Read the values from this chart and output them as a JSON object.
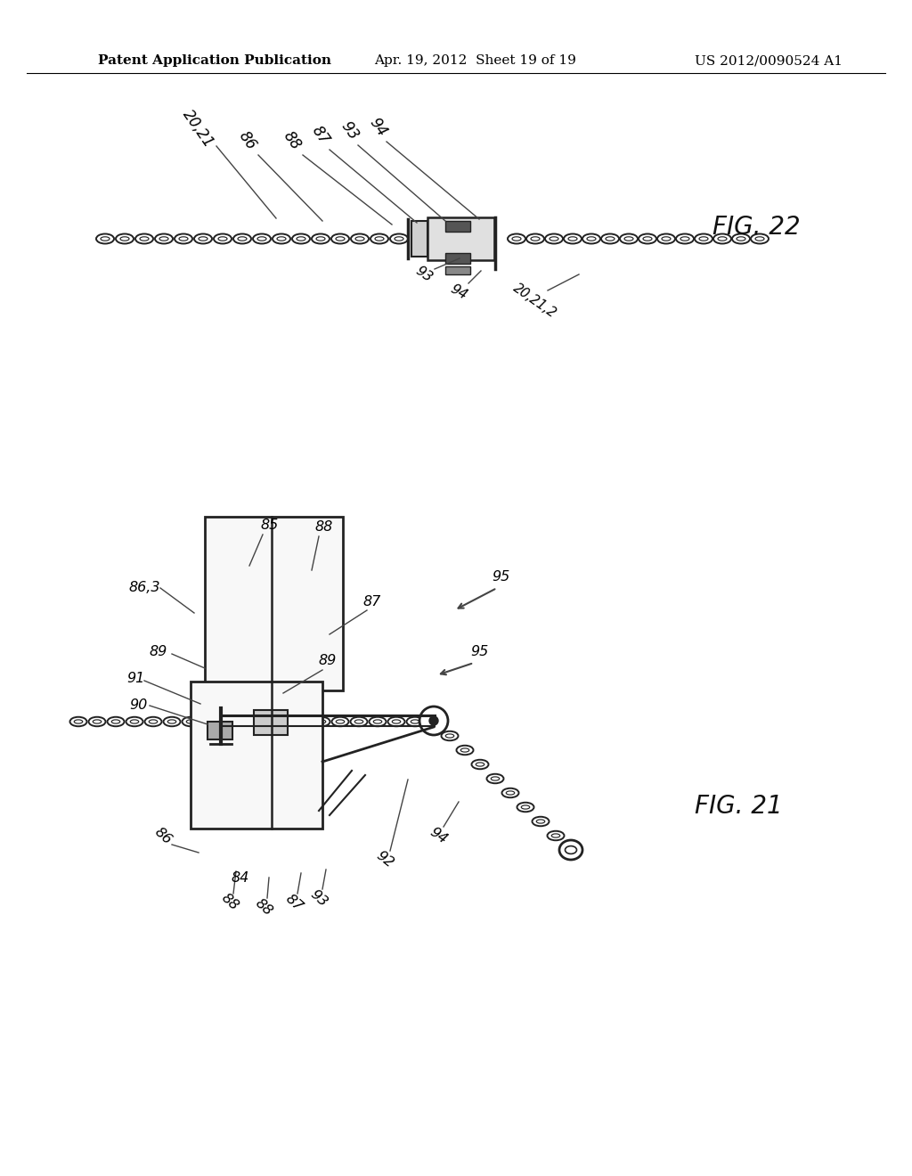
{
  "background_color": "#ffffff",
  "header_left": "Patent Application Publication",
  "header_center": "Apr. 19, 2012  Sheet 19 of 19",
  "header_right": "US 2012/0090524 A1",
  "fig22_label": "FIG. 22",
  "fig21_label": "FIG. 21",
  "header_fontsize": 11,
  "label_fontsize": 13,
  "fig_label_fontsize": 20
}
